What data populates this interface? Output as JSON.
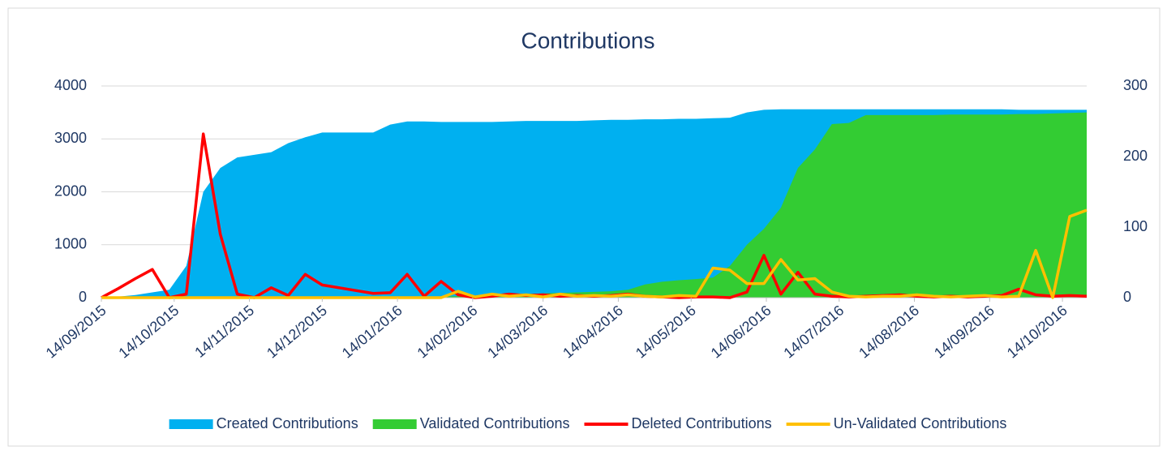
{
  "chart_data": {
    "type": "area",
    "title": "Contributions",
    "x": [
      "2015-09-14",
      "2015-09-21",
      "2015-09-28",
      "2015-10-05",
      "2015-10-12",
      "2015-10-19",
      "2015-10-26",
      "2015-11-02",
      "2015-11-09",
      "2015-11-16",
      "2015-11-23",
      "2015-11-30",
      "2015-12-07",
      "2015-12-14",
      "2015-12-21",
      "2015-12-28",
      "2016-01-04",
      "2016-01-11",
      "2016-01-18",
      "2016-01-25",
      "2016-02-01",
      "2016-02-08",
      "2016-02-15",
      "2016-02-22",
      "2016-02-29",
      "2016-03-07",
      "2016-03-14",
      "2016-03-21",
      "2016-03-28",
      "2016-04-04",
      "2016-04-11",
      "2016-04-18",
      "2016-04-25",
      "2016-05-02",
      "2016-05-09",
      "2016-05-16",
      "2016-05-23",
      "2016-05-30",
      "2016-06-06",
      "2016-06-13",
      "2016-06-20",
      "2016-06-27",
      "2016-07-04",
      "2016-07-11",
      "2016-07-18",
      "2016-07-25",
      "2016-08-01",
      "2016-08-08",
      "2016-08-15",
      "2016-08-22",
      "2016-08-29",
      "2016-09-05",
      "2016-09-12",
      "2016-09-19",
      "2016-09-26",
      "2016-10-03",
      "2016-10-10",
      "2016-10-17",
      "2016-10-24"
    ],
    "xlim": [
      "2015-09-14",
      "2016-10-24"
    ],
    "xticks": [
      {
        "value": "2015-09-14",
        "label": "14/09/2015"
      },
      {
        "value": "2015-10-14",
        "label": "14/10/2015"
      },
      {
        "value": "2015-11-14",
        "label": "14/11/2015"
      },
      {
        "value": "2015-12-14",
        "label": "14/12/2015"
      },
      {
        "value": "2016-01-14",
        "label": "14/01/2016"
      },
      {
        "value": "2016-02-14",
        "label": "14/02/2016"
      },
      {
        "value": "2016-03-14",
        "label": "14/03/2016"
      },
      {
        "value": "2016-04-14",
        "label": "14/04/2016"
      },
      {
        "value": "2016-05-14",
        "label": "14/05/2016"
      },
      {
        "value": "2016-06-14",
        "label": "14/06/2016"
      },
      {
        "value": "2016-07-14",
        "label": "14/07/2016"
      },
      {
        "value": "2016-08-14",
        "label": "14/08/2016"
      },
      {
        "value": "2016-09-14",
        "label": "14/09/2016"
      },
      {
        "value": "2016-10-14",
        "label": "14/10/2016"
      }
    ],
    "ylim": [
      0,
      4000
    ],
    "yticks": [
      0,
      1000,
      2000,
      3000,
      4000
    ],
    "y2lim": [
      0,
      300
    ],
    "y2ticks": [
      0,
      100,
      200,
      300
    ],
    "grid": true,
    "legend": "bottom",
    "series": [
      {
        "name": "Created Contributions",
        "type": "area",
        "color": "#00b0f0",
        "values": [
          0,
          20,
          50,
          100,
          150,
          600,
          2000,
          2450,
          2650,
          2700,
          2750,
          2920,
          3030,
          3120,
          3120,
          3120,
          3120,
          3270,
          3330,
          3330,
          3320,
          3320,
          3320,
          3320,
          3330,
          3340,
          3340,
          3340,
          3340,
          3350,
          3360,
          3360,
          3370,
          3370,
          3380,
          3380,
          3390,
          3400,
          3500,
          3550,
          3560,
          3560,
          3560,
          3560,
          3560,
          3560,
          3560,
          3560,
          3560,
          3560,
          3560,
          3560,
          3560,
          3560,
          3550,
          3550,
          3550,
          3550,
          3550
        ]
      },
      {
        "name": "Validated Contributions",
        "type": "area",
        "color": "#33cc33",
        "values": [
          0,
          0,
          0,
          0,
          0,
          0,
          0,
          0,
          0,
          0,
          0,
          0,
          0,
          0,
          0,
          0,
          0,
          0,
          0,
          0,
          20,
          30,
          40,
          50,
          60,
          70,
          80,
          90,
          100,
          110,
          120,
          150,
          250,
          300,
          330,
          350,
          380,
          600,
          1000,
          1300,
          1700,
          2450,
          2800,
          3280,
          3300,
          3450,
          3450,
          3450,
          3450,
          3450,
          3460,
          3460,
          3460,
          3460,
          3470,
          3470,
          3480,
          3490,
          3500
        ]
      },
      {
        "name": "Deleted Contributions",
        "type": "line",
        "axis": "y2",
        "color": "#ff0000",
        "values": [
          0,
          13,
          27,
          40,
          0,
          5,
          232,
          90,
          5,
          0,
          14,
          3,
          33,
          18,
          14,
          10,
          6,
          7,
          33,
          2,
          23,
          4,
          0,
          2,
          5,
          3,
          4,
          2,
          3,
          2,
          3,
          5,
          2,
          1,
          0,
          1,
          1,
          0,
          8,
          60,
          5,
          36,
          5,
          2,
          1,
          2,
          3,
          4,
          2,
          1,
          2,
          1,
          2,
          3,
          12,
          4,
          2,
          3,
          2
        ]
      },
      {
        "name": "Un-Validated Contributions",
        "type": "line",
        "axis": "y2",
        "color": "#ffc000",
        "values": [
          0,
          0,
          0,
          0,
          0,
          0,
          0,
          0,
          0,
          0,
          0,
          0,
          0,
          0,
          0,
          0,
          0,
          0,
          0,
          0,
          0,
          9,
          1,
          5,
          2,
          4,
          1,
          5,
          2,
          3,
          2,
          4,
          2,
          1,
          3,
          2,
          42,
          39,
          20,
          20,
          54,
          25,
          27,
          8,
          2,
          1,
          2,
          2,
          4,
          2,
          1,
          2,
          3,
          1,
          2,
          67,
          0,
          115,
          124
        ]
      }
    ]
  }
}
